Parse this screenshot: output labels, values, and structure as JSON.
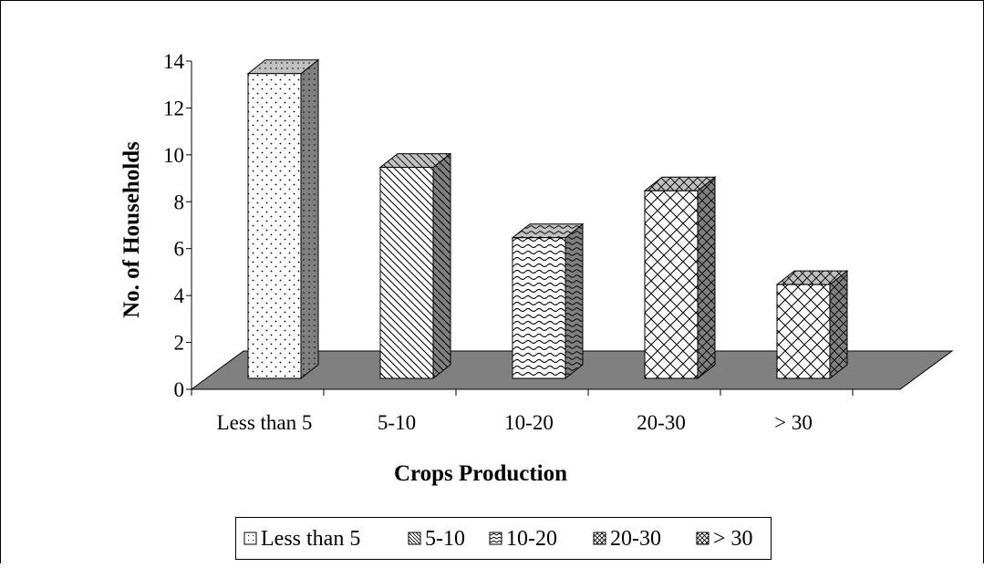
{
  "chart_data": {
    "type": "bar",
    "style": "3d-column",
    "categories": [
      "Less than 5",
      "5-10",
      "10-20",
      "20-30",
      "> 30"
    ],
    "values": [
      13,
      9,
      6,
      8,
      4
    ],
    "title": "",
    "xlabel": "Crops Production",
    "ylabel": "No. of Households",
    "ylim": [
      0,
      14
    ],
    "yticks": [
      "0",
      "2",
      "4",
      "6",
      "8",
      "10",
      "12",
      "14"
    ],
    "grid": false,
    "legend": {
      "placement": "bottom",
      "entries": [
        "Less than 5",
        "5-10",
        "10-20",
        "20-30",
        "> 30"
      ]
    },
    "colors": {
      "bar_face": "#ffffff",
      "bar_top": "#c0c0c0",
      "bar_side": "#808080",
      "floor": "#808080",
      "outline": "#000000"
    }
  }
}
